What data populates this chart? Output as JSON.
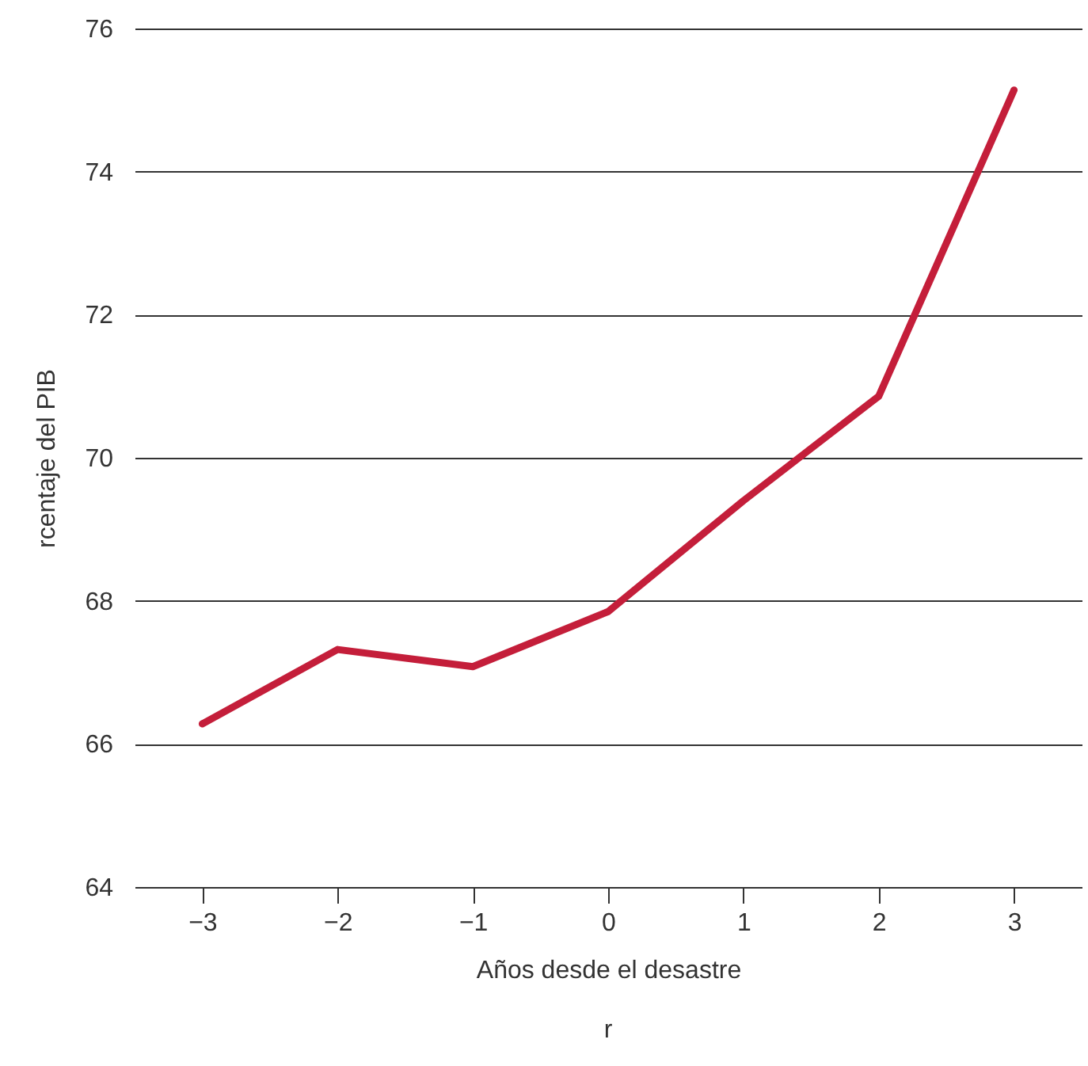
{
  "chart_data": {
    "type": "line",
    "xlabel": "Años desde el desastre",
    "ylabel": "rcentaje del PIB",
    "annotations": [
      "r"
    ],
    "x": [
      -3,
      -2,
      -1,
      0,
      1,
      2,
      3
    ],
    "series": [
      {
        "color": "#c41e3a",
        "values": [
          66.28,
          67.32,
          67.08,
          67.85,
          69.4,
          70.86,
          75.14
        ]
      }
    ],
    "xlim": [
      -3.5,
      3.5
    ],
    "xticks": [
      -3,
      -2,
      -1,
      0,
      1,
      2,
      3
    ],
    "ylim": [
      64,
      76
    ],
    "yticks": [
      64,
      66,
      68,
      70,
      72,
      74,
      76
    ],
    "grid": "y",
    "marker": "none",
    "line_style": "solid"
  }
}
